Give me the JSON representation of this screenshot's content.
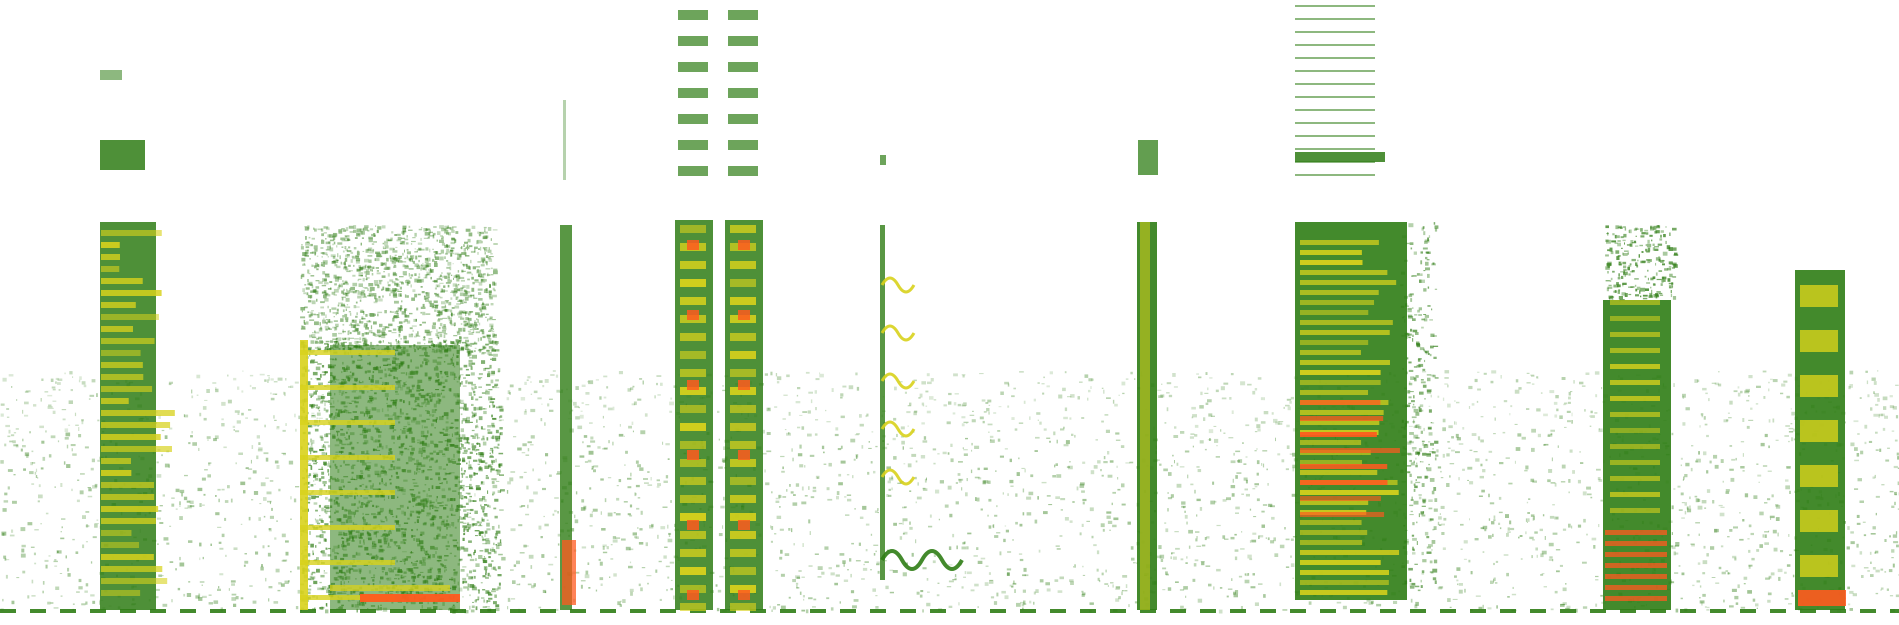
{
  "image": {
    "kind": "spectrogram",
    "background_color": "#ffffff",
    "palette": {
      "low": "#2f7d15",
      "mid": "#4f9a1e",
      "high": "#d8d21c",
      "peak": "#ff5a1f"
    }
  }
}
